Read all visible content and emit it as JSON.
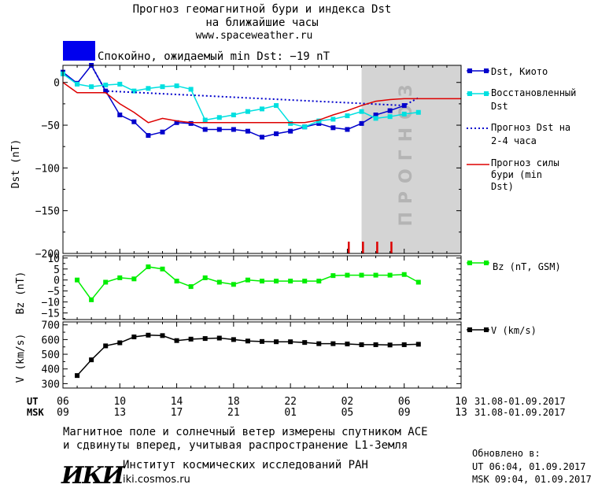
{
  "header": {
    "title_line1": "Прогноз геомагнитной бури и индекса Dst",
    "title_line2": "на ближайшие часы",
    "site": "www.spaceweather.ru",
    "status_color": "#0000ee",
    "status_text": "Спокойно, ожидаемый min Dst: −19 nT"
  },
  "chart_data": [
    {
      "type": "line",
      "ylabel": "Dst (nT)",
      "ylim": [
        -200,
        20
      ],
      "yticks": [
        0,
        -50,
        -100,
        -150,
        -200
      ],
      "ytick_labels": [
        "0",
        "−50",
        "−100",
        "−150",
        "−200"
      ],
      "xlim": [
        6,
        34
      ],
      "forecast_region": [
        27,
        34
      ],
      "forecast_label": "ПРОГНОЗ",
      "series": [
        {
          "name": "Dst, Киото",
          "color": "#0000cc",
          "x": [
            6,
            7,
            8,
            9,
            10,
            11,
            12,
            13,
            14,
            15,
            16,
            17,
            18,
            19,
            20,
            21,
            22,
            23,
            24,
            25,
            26,
            27,
            28,
            29,
            30
          ],
          "y": [
            12,
            -1,
            20,
            -10,
            -38,
            -46,
            -62,
            -58,
            -47,
            -48,
            -55,
            -55,
            -55,
            -57,
            -64,
            -60,
            -57,
            -52,
            -48,
            -53,
            -55,
            -48,
            -38,
            -33,
            -27
          ]
        },
        {
          "name": "Восстановленный Dst",
          "color": "#00e0e0",
          "x": [
            6,
            7,
            8,
            9,
            10,
            11,
            12,
            13,
            14,
            15,
            16,
            17,
            18,
            19,
            20,
            21,
            22,
            23,
            24,
            25,
            26,
            27,
            28,
            29,
            30,
            31
          ],
          "y": [
            10,
            -2,
            -5,
            -3,
            -2,
            -10,
            -7,
            -5,
            -4,
            -8,
            -44,
            -41,
            -38,
            -34,
            -31,
            -27,
            -48,
            -52,
            -45,
            -43,
            -39,
            -34,
            -42,
            -40,
            -37,
            -35
          ]
        },
        {
          "name": "Прогноз Dst на 2-4 часа",
          "color": "#0000cc",
          "x": [
            8,
            9,
            30,
            31
          ],
          "y": [
            20,
            -10,
            -27,
            -18
          ]
        },
        {
          "name": "Прогноз силы бури (min Dst)",
          "color": "#dd0000",
          "x": [
            6,
            7,
            8,
            9,
            10,
            11,
            12,
            13,
            14,
            15,
            16,
            17,
            18,
            19,
            20,
            21,
            22,
            23,
            24,
            25,
            26,
            27,
            28,
            29,
            30,
            31,
            32,
            33,
            34
          ],
          "y": [
            0,
            -12,
            -12,
            -12,
            -25,
            -35,
            -47,
            -42,
            -45,
            -47,
            -47,
            -47,
            -47,
            -47,
            -47,
            -47,
            -47,
            -47,
            -44,
            -38,
            -33,
            -27,
            -22,
            -20,
            -19,
            -19,
            -19,
            -19,
            -19
          ]
        }
      ],
      "markers_red_x": [
        26.1,
        27.1,
        28.1,
        29.1
      ]
    },
    {
      "type": "line",
      "ylabel": "Bz (nT)",
      "ylim": [
        -18,
        11
      ],
      "yticks": [
        10,
        5,
        0,
        -5,
        -10,
        -15
      ],
      "ytick_labels": [
        "10",
        "5",
        "0",
        "−5",
        "−10",
        "−15"
      ],
      "series": [
        {
          "name": "Bz (nT, GSM)",
          "color": "#00ee00",
          "x": [
            7,
            8,
            9,
            10,
            11,
            12,
            13,
            14,
            15,
            16,
            17,
            18,
            19,
            20,
            21,
            22,
            23,
            24,
            25,
            26,
            27,
            28,
            29,
            30,
            31
          ],
          "y": [
            0,
            -9,
            -1,
            1,
            0.5,
            6,
            5,
            -0.5,
            -3,
            1,
            -1,
            -2,
            0,
            -0.5,
            -0.5,
            -0.5,
            -0.5,
            -0.5,
            2,
            2.2,
            2.2,
            2.2,
            2.2,
            2.5,
            -1
          ]
        }
      ]
    },
    {
      "type": "line",
      "ylabel": "V (km/s)",
      "ylim": [
        270,
        720
      ],
      "yticks": [
        700,
        600,
        500,
        400,
        300
      ],
      "ytick_labels": [
        "700",
        "600",
        "500",
        "400",
        "300"
      ],
      "series": [
        {
          "name": "V (km/s)",
          "color": "#000000",
          "x": [
            7,
            8,
            9,
            10,
            11,
            12,
            13,
            14,
            15,
            16,
            17,
            18,
            19,
            20,
            21,
            22,
            23,
            24,
            25,
            26,
            27,
            28,
            29,
            30,
            31
          ],
          "y": [
            355,
            462,
            557,
            578,
            618,
            630,
            627,
            593,
            603,
            607,
            610,
            600,
            590,
            587,
            585,
            585,
            580,
            572,
            572,
            570,
            565,
            565,
            563,
            565,
            568
          ]
        }
      ]
    }
  ],
  "x_axis": {
    "ut_label": "UT",
    "msk_label": "MSK",
    "ut_ticks": [
      "06",
      "10",
      "14",
      "18",
      "22",
      "02",
      "06",
      "10"
    ],
    "msk_ticks": [
      "09",
      "13",
      "17",
      "21",
      "01",
      "05",
      "09",
      "13"
    ],
    "date_range_ut": "31.08-01.09.2017",
    "date_range_msk": "31.08-01.09.2017"
  },
  "footer": {
    "line1": "Магнитное поле и солнечный ветер измерены спутником ACE",
    "line2": "и сдвинуты вперед, учитывая распространение L1-Земля",
    "logo": "ИКИ",
    "institute": "Институт космических исследований РАН",
    "institute_site": "iki.cosmos.ru",
    "updated_label": "Обновлено в:",
    "updated_ut": "UT  06:04, 01.09.2017",
    "updated_msk": "MSK 09:04, 01.09.2017"
  }
}
